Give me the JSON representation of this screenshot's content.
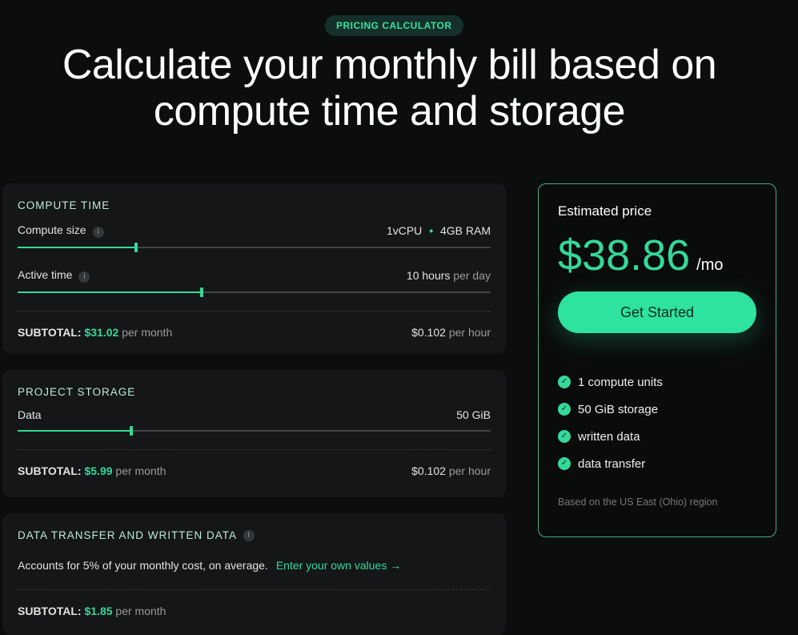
{
  "badge": "PRICING CALCULATOR",
  "headline_1": "Calculate your monthly bill based on",
  "headline_2": "compute time and storage",
  "compute": {
    "title": "COMPUTE TIME",
    "size_label": "Compute size",
    "size_cpu": "1vCPU",
    "size_ram": "4GB RAM",
    "size_fraction": 0.25,
    "active_label": "Active time",
    "active_value": "10 hours",
    "active_unit": "per day",
    "active_fraction": 0.39,
    "subtotal_label": "SUBTOTAL:",
    "subtotal_value": "$31.02",
    "subtotal_unit": "per month",
    "rate_value": "$0.102",
    "rate_unit": "per hour"
  },
  "storage": {
    "title": "PROJECT STORAGE",
    "data_label": "Data",
    "data_value": "50 GiB",
    "data_fraction": 0.24,
    "subtotal_label": "SUBTOTAL:",
    "subtotal_value": "$5.99",
    "subtotal_unit": "per month",
    "rate_value": "$0.102",
    "rate_unit": "per hour"
  },
  "transfer": {
    "title": "DATA TRANSFER AND WRITTEN DATA",
    "desc": "Accounts for 5% of your monthly cost, on average.",
    "link": "Enter your own values →",
    "subtotal_label": "SUBTOTAL:",
    "subtotal_value": "$1.85",
    "subtotal_unit": "per month"
  },
  "estimate": {
    "title": "Estimated price",
    "amount": "$38.86",
    "unit": "/mo",
    "cta": "Get Started",
    "features": [
      "1 compute units",
      "50 GiB storage",
      "written data",
      "data transfer"
    ],
    "note": "Based on the US East (Ohio) region"
  },
  "colors": {
    "accent": "#34d99a",
    "background": "#0c0d0d",
    "card": "#141617"
  }
}
